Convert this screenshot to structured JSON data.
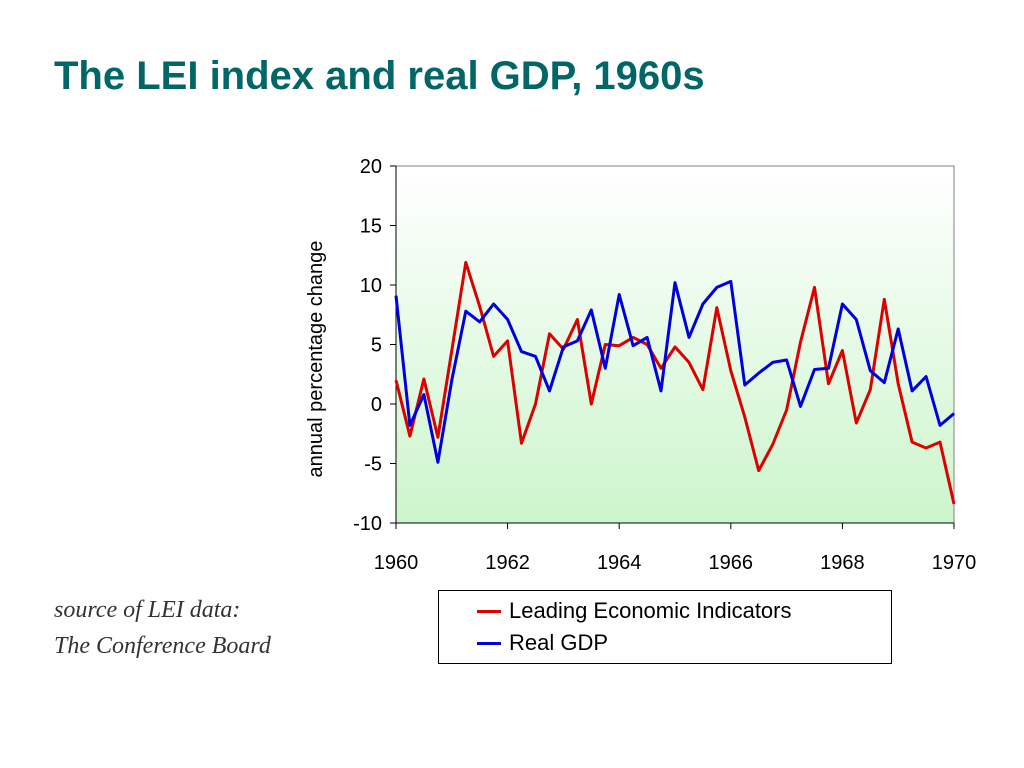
{
  "slide": {
    "title": "The LEI index and real GDP, 1960s",
    "source_line1": "source of LEI data:",
    "source_line2": "The Conference Board"
  },
  "chart_data": {
    "type": "line",
    "title": "",
    "xlabel": "",
    "ylabel": "annual percentage change",
    "xlim": [
      1960,
      1970
    ],
    "ylim": [
      -10,
      20
    ],
    "xticks": [
      1960,
      1962,
      1964,
      1966,
      1968,
      1970
    ],
    "yticks": [
      -10,
      -5,
      0,
      5,
      10,
      15,
      20
    ],
    "grid": false,
    "legend_position": "bottom",
    "plot_background": "#ccf5cc",
    "x": [
      1960.0,
      1960.25,
      1960.5,
      1960.75,
      1961.0,
      1961.25,
      1961.5,
      1961.75,
      1962.0,
      1962.25,
      1962.5,
      1962.75,
      1963.0,
      1963.25,
      1963.5,
      1963.75,
      1964.0,
      1964.25,
      1964.5,
      1964.75,
      1965.0,
      1965.25,
      1965.5,
      1965.75,
      1966.0,
      1966.25,
      1966.5,
      1966.75,
      1967.0,
      1967.25,
      1967.5,
      1967.75,
      1968.0,
      1968.25,
      1968.5,
      1968.75,
      1969.0,
      1969.25,
      1969.5,
      1969.75,
      1970.0
    ],
    "series": [
      {
        "name": "Leading Economic Indicators",
        "color": "#dd0000",
        "values": [
          2.0,
          -2.7,
          2.1,
          -2.8,
          4.5,
          11.9,
          8.2,
          4.0,
          5.3,
          -3.3,
          0.0,
          5.9,
          4.6,
          7.1,
          0.0,
          5.0,
          4.9,
          5.6,
          5.0,
          3.0,
          4.8,
          3.5,
          1.2,
          8.1,
          2.8,
          -1.1,
          -5.6,
          -3.4,
          -0.5,
          5.2,
          9.8,
          1.7,
          4.5,
          -1.6,
          1.2,
          8.8,
          1.7,
          -3.2,
          -3.7,
          -3.2,
          -8.4
        ]
      },
      {
        "name": "Real GDP",
        "color": "#0000dd",
        "values": [
          9.1,
          -1.8,
          0.8,
          -4.9,
          2.0,
          7.8,
          6.9,
          8.4,
          7.1,
          4.4,
          4.0,
          1.1,
          4.8,
          5.3,
          7.9,
          3.0,
          9.2,
          4.9,
          5.6,
          1.1,
          10.2,
          5.6,
          8.4,
          9.8,
          10.3,
          1.6,
          2.6,
          3.5,
          3.7,
          -0.2,
          2.9,
          3.0,
          8.4,
          7.1,
          2.8,
          1.8,
          6.3,
          1.1,
          2.3,
          -1.8,
          -0.8
        ]
      }
    ]
  }
}
